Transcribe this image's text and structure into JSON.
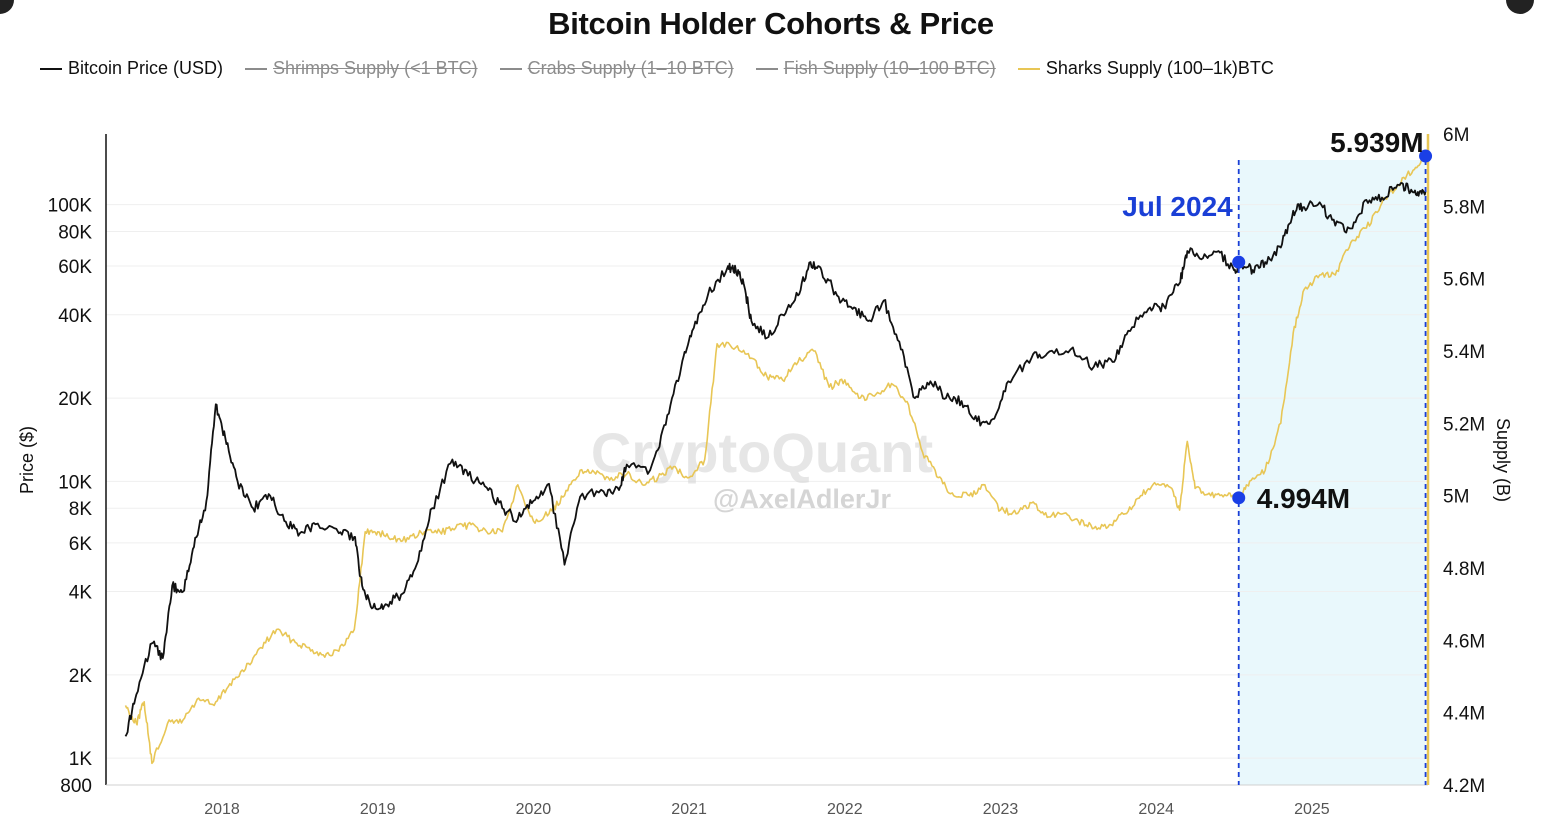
{
  "chart_data": {
    "type": "line",
    "title": "Bitcoin Holder Cohorts & Price",
    "legend": [
      {
        "name": "Bitcoin Price (USD)",
        "color": "#111111",
        "active": true
      },
      {
        "name": "Shrimps Supply (<1 BTC)",
        "color": "#8c8c8c",
        "active": false
      },
      {
        "name": "Crabs Supply (1–10 BTC)",
        "color": "#8c8c8c",
        "active": false
      },
      {
        "name": "Fish Supply (10–100 BTC)",
        "color": "#8c8c8c",
        "active": false
      },
      {
        "name": "Sharks Supply (100–1k)BTC",
        "color": "#e8c655",
        "active": true
      }
    ],
    "x_ticks": [
      "2018",
      "2019",
      "2020",
      "2021",
      "2022",
      "2023",
      "2024",
      "2025"
    ],
    "x_range": [
      2017.35,
      2025.75
    ],
    "left_axis": {
      "label": "Price ($)",
      "scale": "log",
      "range": [
        800,
        180000
      ],
      "ticks": [
        {
          "v": 800,
          "t": "800"
        },
        {
          "v": 1000,
          "t": "1K"
        },
        {
          "v": 2000,
          "t": "2K"
        },
        {
          "v": 4000,
          "t": "4K"
        },
        {
          "v": 6000,
          "t": "6K"
        },
        {
          "v": 8000,
          "t": "8K"
        },
        {
          "v": 10000,
          "t": "10K"
        },
        {
          "v": 20000,
          "t": "20K"
        },
        {
          "v": 40000,
          "t": "40K"
        },
        {
          "v": 60000,
          "t": "60K"
        },
        {
          "v": 80000,
          "t": "80K"
        },
        {
          "v": 100000,
          "t": "100K"
        }
      ]
    },
    "right_axis": {
      "label": "Supply (B)",
      "range": [
        4.2,
        6.0
      ],
      "ticks": [
        {
          "v": 4.2,
          "t": "4.2M"
        },
        {
          "v": 4.4,
          "t": "4.4M"
        },
        {
          "v": 4.6,
          "t": "4.6M"
        },
        {
          "v": 4.8,
          "t": "4.8M"
        },
        {
          "v": 5.0,
          "t": "5M"
        },
        {
          "v": 5.2,
          "t": "5.2M"
        },
        {
          "v": 5.4,
          "t": "5.4M"
        },
        {
          "v": 5.6,
          "t": "5.6M"
        },
        {
          "v": 5.8,
          "t": "5.8M"
        },
        {
          "v": 6.0,
          "t": "6M"
        }
      ]
    },
    "series": [
      {
        "name": "Bitcoin Price (USD)",
        "axis": "left",
        "color": "#111111",
        "points": [
          [
            2017.38,
            1200
          ],
          [
            2017.45,
            1700
          ],
          [
            2017.55,
            2600
          ],
          [
            2017.62,
            2300
          ],
          [
            2017.68,
            4200
          ],
          [
            2017.75,
            4000
          ],
          [
            2017.82,
            5800
          ],
          [
            2017.9,
            8500
          ],
          [
            2017.96,
            19000
          ],
          [
            2018.02,
            14500
          ],
          [
            2018.1,
            10000
          ],
          [
            2018.2,
            8000
          ],
          [
            2018.3,
            9000
          ],
          [
            2018.4,
            7200
          ],
          [
            2018.5,
            6500
          ],
          [
            2018.6,
            7000
          ],
          [
            2018.75,
            6500
          ],
          [
            2018.85,
            6300
          ],
          [
            2018.9,
            4200
          ],
          [
            2018.97,
            3500
          ],
          [
            2019.05,
            3600
          ],
          [
            2019.15,
            3900
          ],
          [
            2019.25,
            5000
          ],
          [
            2019.35,
            8000
          ],
          [
            2019.48,
            12000
          ],
          [
            2019.58,
            10500
          ],
          [
            2019.7,
            9500
          ],
          [
            2019.8,
            8000
          ],
          [
            2019.9,
            7300
          ],
          [
            2020.0,
            8500
          ],
          [
            2020.1,
            9800
          ],
          [
            2020.2,
            5000
          ],
          [
            2020.3,
            8800
          ],
          [
            2020.45,
            9200
          ],
          [
            2020.55,
            9300
          ],
          [
            2020.6,
            11500
          ],
          [
            2020.75,
            11000
          ],
          [
            2020.85,
            16000
          ],
          [
            2020.95,
            26000
          ],
          [
            2021.02,
            35000
          ],
          [
            2021.12,
            47000
          ],
          [
            2021.25,
            60000
          ],
          [
            2021.3,
            58000
          ],
          [
            2021.35,
            52000
          ],
          [
            2021.4,
            38000
          ],
          [
            2021.5,
            33000
          ],
          [
            2021.6,
            40000
          ],
          [
            2021.7,
            47000
          ],
          [
            2021.78,
            62000
          ],
          [
            2021.85,
            58000
          ],
          [
            2021.95,
            47000
          ],
          [
            2022.05,
            42000
          ],
          [
            2022.15,
            38000
          ],
          [
            2022.25,
            45000
          ],
          [
            2022.35,
            32000
          ],
          [
            2022.45,
            20000
          ],
          [
            2022.55,
            23000
          ],
          [
            2022.65,
            20000
          ],
          [
            2022.75,
            19500
          ],
          [
            2022.85,
            16500
          ],
          [
            2022.95,
            16800
          ],
          [
            2023.05,
            23000
          ],
          [
            2023.2,
            28000
          ],
          [
            2023.3,
            29000
          ],
          [
            2023.45,
            30000
          ],
          [
            2023.6,
            26000
          ],
          [
            2023.72,
            27000
          ],
          [
            2023.82,
            35000
          ],
          [
            2023.95,
            42000
          ],
          [
            2024.05,
            43000
          ],
          [
            2024.15,
            52000
          ],
          [
            2024.2,
            68000
          ],
          [
            2024.3,
            64000
          ],
          [
            2024.4,
            68000
          ],
          [
            2024.5,
            58000
          ],
          [
            2024.55,
            61000
          ],
          [
            2024.62,
            58000
          ],
          [
            2024.7,
            62000
          ],
          [
            2024.8,
            70000
          ],
          [
            2024.88,
            95000
          ],
          [
            2024.95,
            98000
          ],
          [
            2025.05,
            102000
          ],
          [
            2025.15,
            84000
          ],
          [
            2025.25,
            82000
          ],
          [
            2025.35,
            104000
          ],
          [
            2025.45,
            106000
          ],
          [
            2025.55,
            118000
          ],
          [
            2025.62,
            114000
          ],
          [
            2025.68,
            111000
          ],
          [
            2025.73,
            112000
          ]
        ]
      },
      {
        "name": "Sharks Supply (100–1k)BTC",
        "axis": "right",
        "color": "#e8c655",
        "points": [
          [
            2017.38,
            4.42
          ],
          [
            2017.45,
            4.37
          ],
          [
            2017.5,
            4.43
          ],
          [
            2017.55,
            4.26
          ],
          [
            2017.65,
            4.37
          ],
          [
            2017.75,
            4.38
          ],
          [
            2017.85,
            4.44
          ],
          [
            2017.95,
            4.42
          ],
          [
            2018.05,
            4.48
          ],
          [
            2018.15,
            4.52
          ],
          [
            2018.25,
            4.58
          ],
          [
            2018.35,
            4.63
          ],
          [
            2018.45,
            4.6
          ],
          [
            2018.55,
            4.58
          ],
          [
            2018.65,
            4.56
          ],
          [
            2018.75,
            4.57
          ],
          [
            2018.85,
            4.63
          ],
          [
            2018.92,
            4.9
          ],
          [
            2019.0,
            4.9
          ],
          [
            2019.1,
            4.88
          ],
          [
            2019.2,
            4.88
          ],
          [
            2019.3,
            4.9
          ],
          [
            2019.4,
            4.9
          ],
          [
            2019.5,
            4.91
          ],
          [
            2019.6,
            4.92
          ],
          [
            2019.7,
            4.9
          ],
          [
            2019.8,
            4.9
          ],
          [
            2019.9,
            5.03
          ],
          [
            2020.0,
            4.93
          ],
          [
            2020.1,
            4.95
          ],
          [
            2020.2,
            5.0
          ],
          [
            2020.3,
            5.07
          ],
          [
            2020.4,
            5.06
          ],
          [
            2020.5,
            5.05
          ],
          [
            2020.6,
            5.06
          ],
          [
            2020.7,
            5.03
          ],
          [
            2020.8,
            5.05
          ],
          [
            2020.9,
            5.08
          ],
          [
            2021.0,
            5.05
          ],
          [
            2021.1,
            5.1
          ],
          [
            2021.18,
            5.42
          ],
          [
            2021.3,
            5.41
          ],
          [
            2021.4,
            5.38
          ],
          [
            2021.5,
            5.33
          ],
          [
            2021.6,
            5.32
          ],
          [
            2021.7,
            5.37
          ],
          [
            2021.8,
            5.4
          ],
          [
            2021.9,
            5.3
          ],
          [
            2022.0,
            5.32
          ],
          [
            2022.1,
            5.27
          ],
          [
            2022.2,
            5.28
          ],
          [
            2022.3,
            5.31
          ],
          [
            2022.4,
            5.26
          ],
          [
            2022.5,
            5.12
          ],
          [
            2022.6,
            5.05
          ],
          [
            2022.7,
            5.0
          ],
          [
            2022.8,
            5.0
          ],
          [
            2022.9,
            5.03
          ],
          [
            2023.0,
            4.96
          ],
          [
            2023.1,
            4.95
          ],
          [
            2023.2,
            4.98
          ],
          [
            2023.3,
            4.94
          ],
          [
            2023.4,
            4.95
          ],
          [
            2023.5,
            4.93
          ],
          [
            2023.6,
            4.91
          ],
          [
            2023.7,
            4.92
          ],
          [
            2023.8,
            4.95
          ],
          [
            2023.9,
            5.0
          ],
          [
            2024.0,
            5.03
          ],
          [
            2024.1,
            5.02
          ],
          [
            2024.15,
            4.96
          ],
          [
            2024.2,
            5.15
          ],
          [
            2024.25,
            5.02
          ],
          [
            2024.35,
            5.0
          ],
          [
            2024.45,
            5.0
          ],
          [
            2024.53,
            4.99
          ],
          [
            2024.6,
            5.04
          ],
          [
            2024.7,
            5.07
          ],
          [
            2024.8,
            5.2
          ],
          [
            2024.88,
            5.45
          ],
          [
            2024.95,
            5.57
          ],
          [
            2025.05,
            5.61
          ],
          [
            2025.15,
            5.61
          ],
          [
            2025.25,
            5.7
          ],
          [
            2025.35,
            5.74
          ],
          [
            2025.45,
            5.81
          ],
          [
            2025.55,
            5.86
          ],
          [
            2025.65,
            5.9
          ],
          [
            2025.73,
            5.94
          ]
        ]
      }
    ],
    "highlight": {
      "from": 2024.53,
      "to": 2025.73,
      "fill": "#e9f8fc",
      "line_color": "#1a3fd6"
    },
    "annotations": [
      {
        "text": "Jul 2024",
        "x": 2024.53,
        "y": 62000,
        "axis": "left",
        "color": "#1a3fd6"
      },
      {
        "text": "4.994M",
        "x": 2024.53,
        "y": 4.994,
        "axis": "right",
        "color": "#111111"
      },
      {
        "text": "5.939M",
        "x": 2025.73,
        "y": 5.939,
        "axis": "right",
        "color": "#111111"
      }
    ],
    "watermark": "CryptoQuant",
    "watermark_handle": "@AxelAdlerJr"
  }
}
